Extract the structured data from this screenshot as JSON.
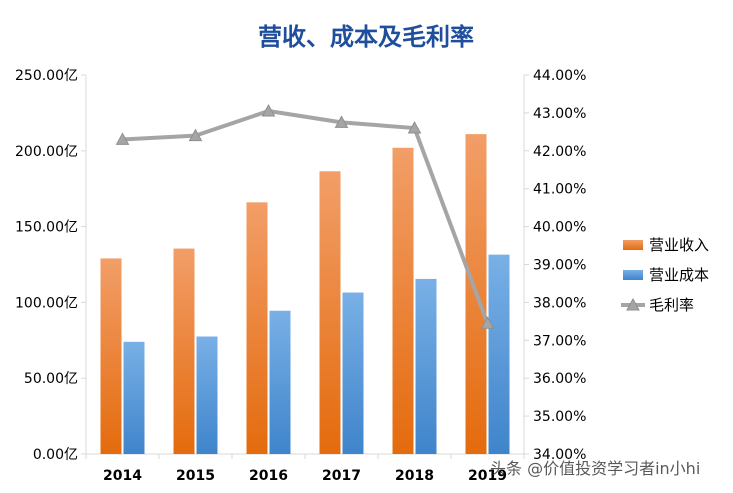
{
  "chart_data": {
    "type": "bar",
    "title": "营收、成本及毛利率",
    "categories": [
      "2014",
      "2015",
      "2016",
      "2017",
      "2018",
      "2019"
    ],
    "series": [
      {
        "name": "营业收入",
        "axis": "left",
        "color": "#ed7d31",
        "values": [
          129,
          135.5,
          166,
          186.5,
          202,
          211
        ]
      },
      {
        "name": "营业成本",
        "axis": "left",
        "color": "#5b9bd5",
        "values": [
          74,
          77.5,
          94.5,
          106.5,
          115.5,
          131.5
        ]
      },
      {
        "name": "毛利率",
        "type": "line",
        "axis": "right",
        "color": "#a5a5a5",
        "values": [
          42.3,
          42.4,
          43.05,
          42.75,
          42.6,
          37.45
        ]
      }
    ],
    "left_axis": {
      "ylim": [
        0,
        250
      ],
      "ticks": [
        "0.00亿",
        "50.00亿",
        "100.00亿",
        "150.00亿",
        "200.00亿",
        "250.00亿"
      ]
    },
    "right_axis": {
      "ylim": [
        34,
        44
      ],
      "ticks": [
        "34.00%",
        "35.00%",
        "36.00%",
        "37.00%",
        "38.00%",
        "39.00%",
        "40.00%",
        "41.00%",
        "42.00%",
        "43.00%",
        "44.00%"
      ]
    },
    "grid": false,
    "legend": {
      "position": "right",
      "items": [
        "营业收入",
        "营业成本",
        "毛利率"
      ]
    }
  },
  "watermark": "头条 @价值投资学习者in小hi"
}
